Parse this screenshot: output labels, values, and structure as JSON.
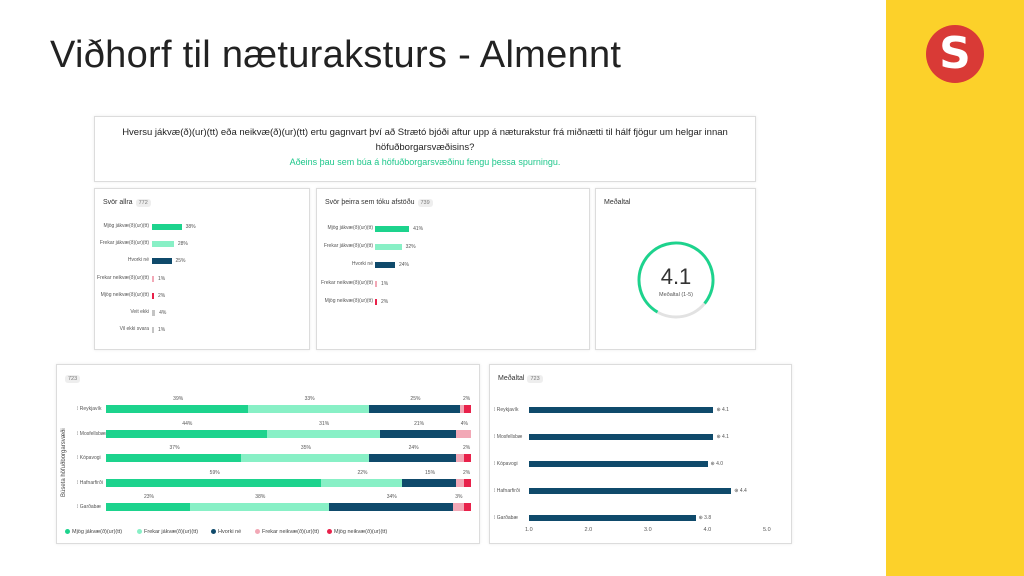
{
  "page": {
    "title": "Viðhorf til næturaksturs - Almennt"
  },
  "logo": {
    "letter": "S"
  },
  "colors": {
    "mjog_jakv": "#1dd38d",
    "frekar_jakv": "#88f0c6",
    "hvorki": "#0f4a6b",
    "frekar_neikv": "#f2a8b6",
    "mjog_neikv": "#e8214a",
    "veit_ekki": "#c4c4c4",
    "sidebar": "#fcd12a",
    "logo": "#d93a36",
    "gauge": "#1dd38d"
  },
  "question": {
    "line1": "Hversu jákvæ(ð)(ur)(tt) eða neikvæ(ð)(ur)(tt) ertu gagnvart því að Strætó bjóði aftur upp á næturakstur frá miðnætti til hálf fjögur um helgar innan",
    "line2": "höfuðborgarsvæðisins?",
    "note": "Aðeins þau sem búa á höfuðborgarsvæðinu fengu þessa spurningu."
  },
  "chart_data": [
    {
      "type": "bar",
      "title": "Svör allra",
      "badge": "772",
      "categories": [
        "Mjög jákvæ(ð)(ur)(tt)",
        "Frekar jákvæ(ð)(ur)(tt)",
        "Hvorki né",
        "Frekar neikvæ(ð)(ur)(tt)",
        "Mjög neikvæ(ð)(ur)(tt)",
        "Veit ekki",
        "Vil ekki svara"
      ],
      "values": [
        38,
        28,
        25,
        1,
        2,
        4,
        1
      ],
      "labels": [
        "38%",
        "28%",
        "25%",
        "1%",
        "2%",
        "4%",
        "1%"
      ],
      "colors": [
        "#1dd38d",
        "#88f0c6",
        "#0f4a6b",
        "#f2a8b6",
        "#e8214a",
        "#c4c4c4",
        "#c4c4c4"
      ]
    },
    {
      "type": "bar",
      "title": "Svör þeirra sem tóku afstöðu",
      "badge": "739",
      "categories": [
        "Mjög jákvæ(ð)(ur)(tt)",
        "Frekar jákvæ(ð)(ur)(tt)",
        "Hvorki né",
        "Frekar neikvæ(ð)(ur)(tt)",
        "Mjög neikvæ(ð)(ur)(tt)"
      ],
      "values": [
        41,
        32,
        24,
        1,
        2
      ],
      "labels": [
        "41%",
        "32%",
        "24%",
        "1%",
        "2%"
      ],
      "colors": [
        "#1dd38d",
        "#88f0c6",
        "#0f4a6b",
        "#f2a8b6",
        "#e8214a"
      ]
    },
    {
      "type": "gauge",
      "title": "Meðaltal",
      "value": 4.1,
      "display": "4.1",
      "caption": "Meðaltal (1-5)",
      "range": [
        1,
        5
      ]
    },
    {
      "type": "bar",
      "stacked": true,
      "badge": "723",
      "ylabel": "Búseta höfuðborgarsvæði",
      "categories": [
        "Reykjavík",
        "Mosfellsbær",
        "Kópavogi",
        "Hafnarfirði",
        "Garðabæ"
      ],
      "series": [
        {
          "name": "Mjög jákvæ(ð)(ur)(tt)",
          "values": [
            39,
            44,
            37,
            59,
            23
          ],
          "labels": [
            "39%",
            "44%",
            "37%",
            "59%",
            "23%"
          ]
        },
        {
          "name": "Frekar jákvæ(ð)(ur)(tt)",
          "values": [
            33,
            31,
            35,
            22,
            38
          ],
          "labels": [
            "33%",
            "31%",
            "35%",
            "22%",
            "38%"
          ]
        },
        {
          "name": "Hvorki né",
          "values": [
            25,
            21,
            24,
            15,
            34
          ],
          "labels": [
            "25%",
            "21%",
            "24%",
            "15%",
            "34%"
          ]
        },
        {
          "name": "Frekar neikvæ(ð)(ur)(tt)",
          "values": [
            1,
            4,
            2,
            2,
            3
          ],
          "labels": [
            "",
            "4%",
            "",
            "",
            "3%"
          ]
        },
        {
          "name": "Mjög neikvæ(ð)(ur)(tt)",
          "values": [
            2,
            0,
            2,
            2,
            2
          ],
          "labels": [
            "2%",
            "",
            "2%",
            "2%",
            ""
          ]
        }
      ],
      "legend": [
        "Mjög jákvæ(ð)(ur)(tt)",
        "Frekar jákvæ(ð)(ur)(tt)",
        "Hvorki né",
        "Frekar neikvæ(ð)(ur)(tt)",
        "Mjög neikvæ(ð)(ur)(tt)"
      ],
      "legend_position": "bottom-left"
    },
    {
      "type": "bar",
      "orientation": "horizontal",
      "title": "Meðaltal",
      "badge": "723",
      "categories": [
        "Reykjavík",
        "Mosfellsbæ",
        "Kópavogi",
        "Hafnarfirði",
        "Garðabæ"
      ],
      "values": [
        4.1,
        4.1,
        4.0,
        4.4,
        3.8
      ],
      "labels": [
        "4.1",
        "4.1",
        "4.0",
        "4.4",
        "3.8"
      ],
      "xlim": [
        1,
        5
      ],
      "xticks": [
        "1.0",
        "2.0",
        "3.0",
        "4.0",
        "5.0"
      ]
    }
  ]
}
